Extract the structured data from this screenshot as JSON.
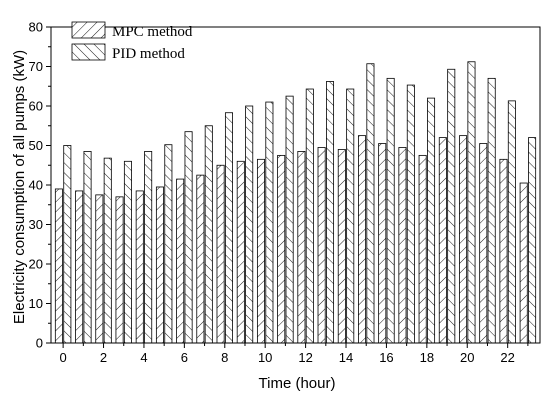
{
  "chart_data": {
    "type": "bar",
    "title": "",
    "xlabel": "Time (hour)",
    "ylabel": "Electricity consumption of all pumps (kW)",
    "ylim": [
      0,
      80
    ],
    "yticks": [
      0,
      10,
      20,
      30,
      40,
      50,
      60,
      70,
      80
    ],
    "xlim": [
      -0.6,
      23.6
    ],
    "xticks": [
      0,
      2,
      4,
      6,
      8,
      10,
      12,
      14,
      16,
      18,
      20,
      22
    ],
    "grid": false,
    "legend_position": "top-left",
    "categories": [
      0,
      1,
      2,
      3,
      4,
      5,
      6,
      7,
      8,
      9,
      10,
      11,
      12,
      13,
      14,
      15,
      16,
      17,
      18,
      19,
      20,
      21,
      22,
      23
    ],
    "series": [
      {
        "name": "MPC method",
        "hatch": "forward-diagonal",
        "values": [
          39.0,
          38.5,
          37.5,
          37.0,
          38.5,
          39.5,
          41.5,
          42.5,
          45.0,
          46.0,
          46.5,
          47.5,
          48.5,
          49.5,
          49.0,
          52.5,
          50.5,
          49.5,
          47.5,
          52.0,
          52.5,
          50.5,
          46.5,
          40.5
        ]
      },
      {
        "name": "PID method",
        "hatch": "backward-diagonal",
        "values": [
          50.0,
          48.5,
          46.8,
          46.0,
          48.5,
          50.2,
          53.5,
          55.0,
          58.3,
          60.0,
          61.0,
          62.5,
          64.3,
          66.2,
          64.3,
          70.7,
          67.0,
          65.3,
          62.0,
          69.3,
          71.2,
          67.0,
          61.3,
          52.0
        ]
      }
    ]
  }
}
